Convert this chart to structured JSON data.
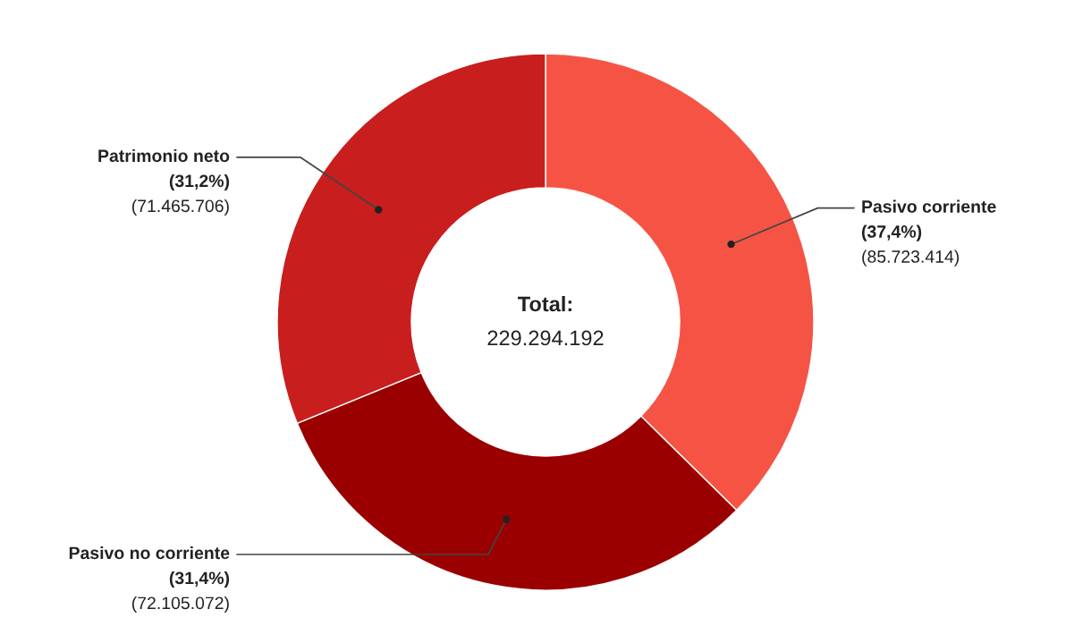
{
  "chart_data": {
    "type": "donut",
    "categories": [
      "Pasivo corriente",
      "Pasivo no corriente",
      "Patrimonio neto"
    ],
    "values": [
      85723414,
      72105072,
      71465706
    ],
    "colors": [
      "#f55444",
      "#9a0000",
      "#c81e1e"
    ],
    "value_labels": [
      "(37,4%)\n(85.723.414)",
      "(31,4%)\n(72.105.072)",
      "(31,2%)\n(71.465.706)"
    ],
    "annotations": [
      "Total:",
      "229.294.192"
    ],
    "legend": false
  }
}
